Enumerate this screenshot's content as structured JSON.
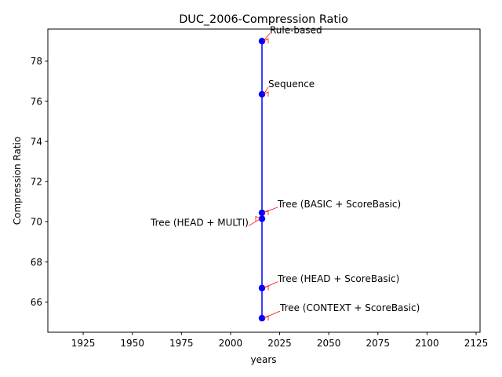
{
  "chart_data": {
    "type": "line",
    "title": "DUC_2006-Compression Ratio",
    "xlabel": "years",
    "ylabel": "Compression Ratio",
    "xlim": [
      1907,
      2127
    ],
    "ylim": [
      64.5,
      79.6
    ],
    "xticks": [
      1925,
      1950,
      1975,
      2000,
      2025,
      2050,
      2075,
      2100,
      2125
    ],
    "yticks": [
      66,
      68,
      70,
      72,
      74,
      76,
      78
    ],
    "grid": false,
    "series": [
      {
        "color": "#0000ff",
        "points": [
          {
            "x": 2016,
            "y": 79.0,
            "label": "Rule-based"
          },
          {
            "x": 2016,
            "y": 76.35,
            "label": "Sequence"
          },
          {
            "x": 2016,
            "y": 70.45,
            "label": "Tree (BASIC + ScoreBasic)"
          },
          {
            "x": 2016,
            "y": 70.15,
            "label": "Tree (HEAD + MULTI)"
          },
          {
            "x": 2016,
            "y": 66.7,
            "label": "Tree (HEAD + ScoreBasic)"
          },
          {
            "x": 2016,
            "y": 65.2,
            "label": "Tree (CONTEXT + ScoreBasic)"
          }
        ]
      }
    ],
    "annotation_color": "#ff0000"
  }
}
